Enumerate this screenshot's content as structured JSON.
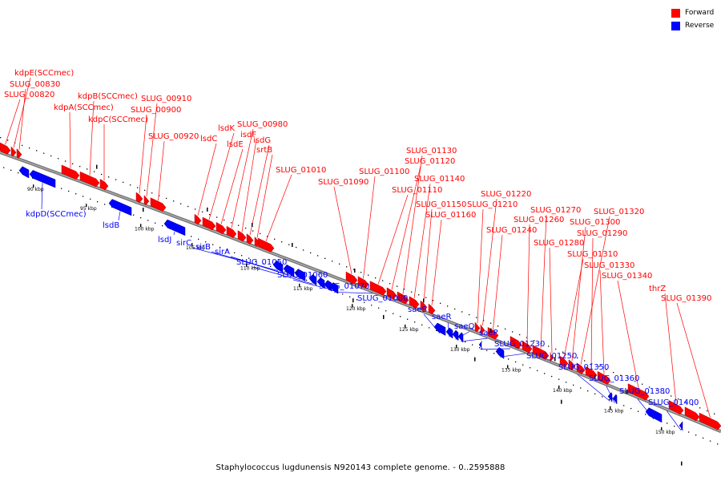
{
  "caption": "Staphylococcus lugdunensis N920143 complete genome. - 0..2595888",
  "legend": {
    "forward": {
      "label": "Forward",
      "color": "#ff0000"
    },
    "reverse": {
      "label": "Reverse",
      "color": "#0000ff"
    }
  },
  "colors": {
    "forward": "#ff0000",
    "reverse": "#0000ff",
    "backbone": "#666666"
  },
  "ticks": [
    "90 kbp",
    "95 kbp",
    "100 kbp",
    "105 kbp",
    "110 kbp",
    "115 kbp",
    "120 kbp",
    "125 kbp",
    "130 kbp",
    "135 kbp",
    "140 kbp",
    "145 kbp",
    "150 kbp"
  ],
  "forward_labels": [
    "kdpE(SCCmec)",
    "SLUG_00830",
    "SLUG_00820",
    "kdpB(SCCmec)",
    "kdpA(SCCmec)",
    "kdpC(SCCmec)",
    "SLUG_00910",
    "SLUG_00900",
    "SLUG_00920",
    "lsdK",
    "lsdC",
    "isdF",
    "lsdE",
    "SLUG_00980",
    "isdG",
    "srtB",
    "SLUG_01010",
    "SLUG_01130",
    "SLUG_01120",
    "SLUG_01100",
    "SLUG_01140",
    "SLUG_01090",
    "SLUG_01110",
    "SLUG_01150",
    "SLUG_01160",
    "SLUG_01220",
    "SLUG_01210",
    "SLUG_01270",
    "SLUG_01320",
    "SLUG_01260",
    "SLUG_01300",
    "SLUG_01240",
    "SLUG_01290",
    "SLUG_01280",
    "SLUG_01310",
    "SLUG_01330",
    "SLUG_01340",
    "thrZ",
    "SLUG_01390"
  ],
  "reverse_labels": [
    "kdpD(SCCmec)",
    "lsdB",
    "lsdJ",
    "sirC",
    "sirB",
    "sirA",
    "SLUG_01050",
    "SLUG_01060",
    "SLUG_01070",
    "SLUG_01080",
    "saeS",
    "saeR",
    "saeQ",
    "saeP",
    "SLUG_01230",
    "SLUG_01250",
    "SLUG_01350",
    "SLUG_01360",
    "SLUG_01380",
    "SLUG_01400"
  ]
}
